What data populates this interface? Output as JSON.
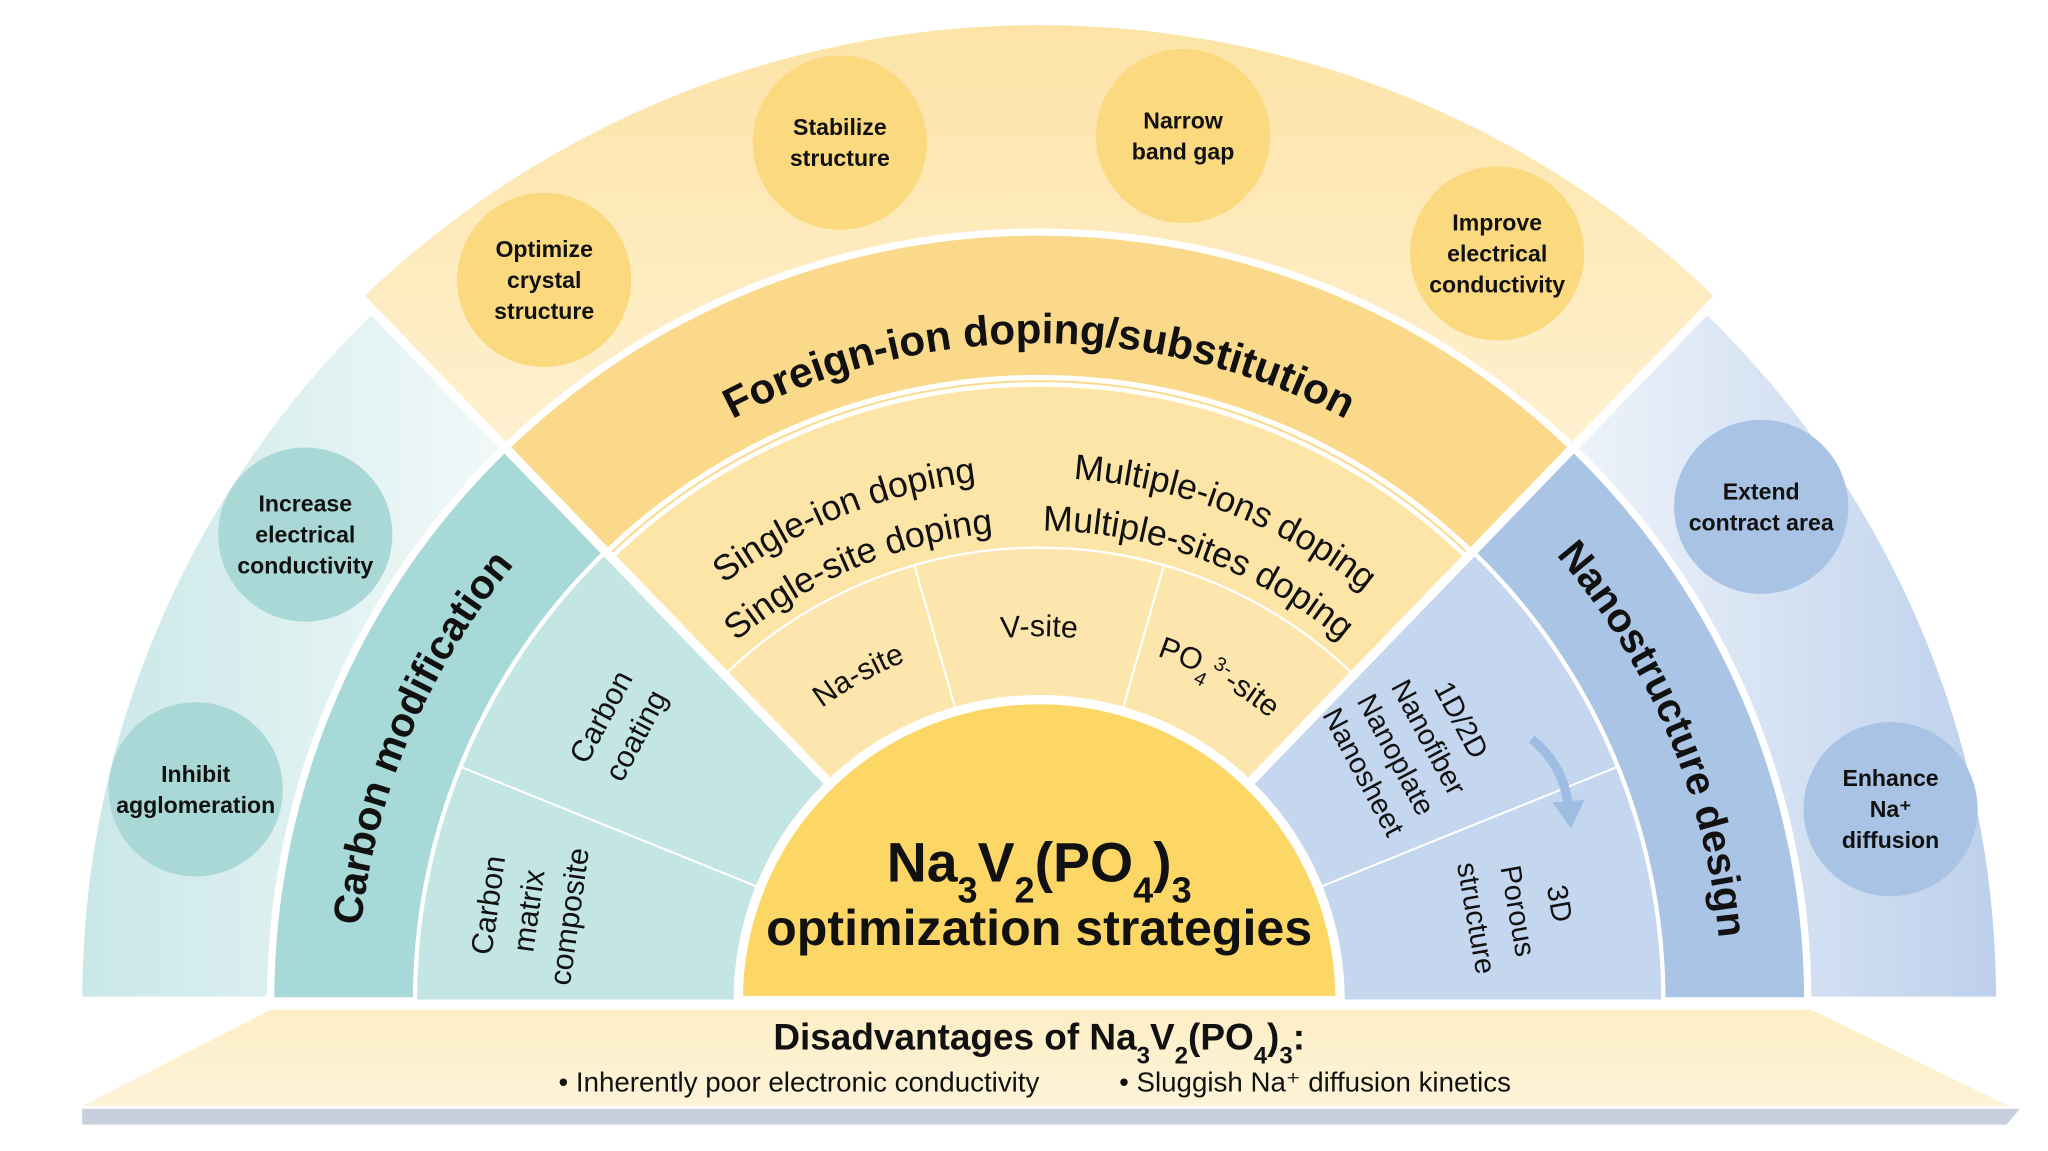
{
  "core": {
    "formula": [
      {
        "t": "Na"
      },
      {
        "t": "3",
        "s": "sub"
      },
      {
        "t": "V"
      },
      {
        "t": "2",
        "s": "sub"
      },
      {
        "t": "(PO"
      },
      {
        "t": "4",
        "s": "sub"
      },
      {
        "t": ")"
      },
      {
        "t": "3",
        "s": "sub"
      }
    ],
    "subtitle": "optimization strategies"
  },
  "doping": {
    "title": "Foreign-ion doping/substitution",
    "single_ion": "Single-ion doping",
    "single_site": "Single-site doping",
    "multiple_ions": "Multiple-ions doping",
    "multiple_sites": "Multiple-sites doping",
    "sites": {
      "na": "Na-site",
      "v": "V-site",
      "po4": [
        {
          "t": "PO"
        },
        {
          "t": "4",
          "s": "sub"
        },
        {
          "t": "3-",
          "s": "sup"
        },
        {
          "t": "-site"
        }
      ]
    },
    "benefits": [
      [
        "Optimize",
        "crystal",
        "structure"
      ],
      [
        "Stabilize",
        "structure"
      ],
      [
        "Narrow",
        "band gap"
      ],
      [
        "Improve",
        "electrical",
        "conductivity"
      ]
    ]
  },
  "carbon": {
    "title": "Carbon modification",
    "coating": [
      "Carbon",
      "coating"
    ],
    "matrix": [
      "Carbon",
      "matrix",
      "composite"
    ],
    "benefits": [
      [
        "Increase",
        "electrical",
        "conductivity"
      ],
      [
        "Inhibit",
        "agglomeration"
      ]
    ]
  },
  "nano": {
    "title": "Nanostructure design",
    "low_dim": [
      "1D/2D",
      "Nanofiber",
      "Nanoplate",
      "Nanosheet"
    ],
    "three_d": [
      "3D",
      "Porous",
      "structure"
    ],
    "benefits": [
      [
        "Extend",
        "contract area"
      ],
      [
        "Enhance",
        "Na⁺",
        "diffusion"
      ]
    ]
  },
  "disadvantages": {
    "title": [
      {
        "t": "Disadvantages of Na"
      },
      {
        "t": "3",
        "s": "sub"
      },
      {
        "t": "V"
      },
      {
        "t": "2",
        "s": "sub"
      },
      {
        "t": "(PO"
      },
      {
        "t": "4",
        "s": "sub"
      },
      {
        "t": ")"
      },
      {
        "t": "3",
        "s": "sub"
      },
      {
        "t": ":"
      }
    ],
    "items": [
      "•  Inherently poor electronic conductivity",
      "•  Sluggish Na⁺ diffusion kinetics"
    ]
  },
  "colors": {
    "yellow_core": "#fcd766",
    "yellow_band": "#fbd98a",
    "yellow_light": "#fde5a8",
    "yellow_outer": "#fde9b8",
    "yellow_circle": "#fbd97f",
    "teal_band": "#a7d9d8",
    "teal_inner": "#c3e5e4",
    "teal_circle": "#a9d8d6",
    "blue_band": "#a9c4e4",
    "blue_inner": "#c5d6ef",
    "blue_circle": "#a9c3e4"
  }
}
